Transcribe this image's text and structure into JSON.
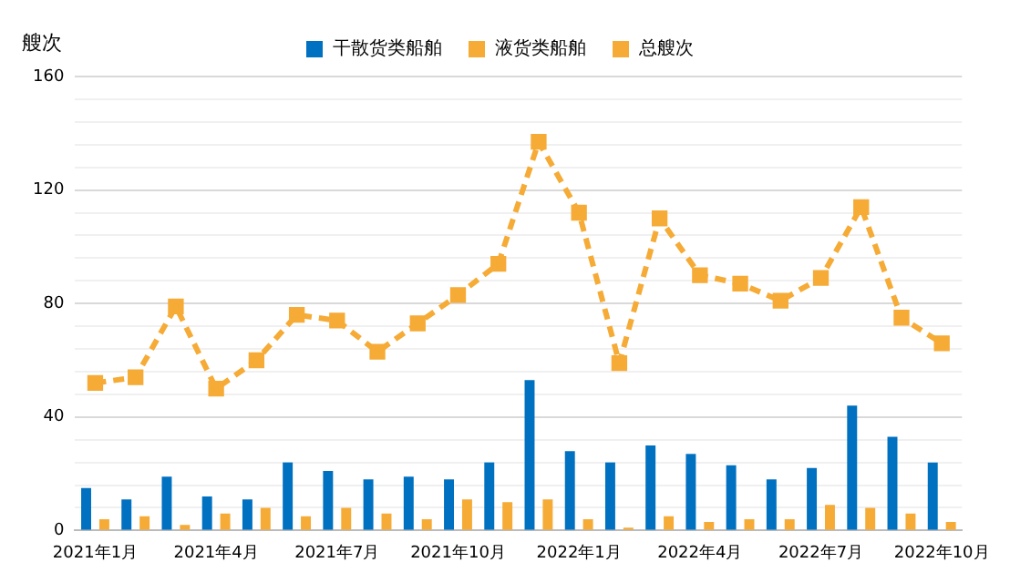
{
  "chart_data": {
    "type": "bar",
    "ylabel": "艘次",
    "categories": [
      "2021年1月",
      null,
      null,
      "2021年4月",
      null,
      null,
      "2021年7月",
      null,
      null,
      "2021年10月",
      null,
      null,
      "2022年1月",
      null,
      null,
      "2022年4月",
      null,
      null,
      "2022年7月",
      null,
      null,
      "2022年10月"
    ],
    "series": [
      {
        "name": "干散货类船舶",
        "color": "#0070c0",
        "values": [
          15,
          11,
          19,
          12,
          11,
          24,
          21,
          18,
          19,
          18,
          24,
          53,
          28,
          24,
          30,
          27,
          23,
          18,
          22,
          44,
          33,
          24
        ]
      },
      {
        "name": "液货类船舶",
        "color": "#f5ab35",
        "values": [
          4,
          5,
          2,
          6,
          8,
          5,
          8,
          6,
          4,
          11,
          10,
          11,
          4,
          1,
          5,
          3,
          4,
          4,
          9,
          8,
          6,
          3
        ]
      },
      {
        "name": "总艘次",
        "type": "line",
        "color": "#f5ab35",
        "marker": "square",
        "line_style": "dashed",
        "values": [
          52,
          54,
          79,
          50,
          60,
          76,
          74,
          63,
          73,
          83,
          94,
          137,
          112,
          59,
          110,
          90,
          87,
          81,
          89,
          114,
          75,
          66
        ]
      }
    ],
    "ylim": [
      0,
      160
    ],
    "yticks": [
      0,
      {
        "value": 8,
        "label": null
      },
      {
        "value": 16,
        "label": null
      },
      {
        "value": 24,
        "label": null
      },
      {
        "value": 32,
        "label": null
      },
      40,
      {
        "value": 48,
        "label": null
      },
      {
        "value": 56,
        "label": null
      },
      {
        "value": 64,
        "label": null
      },
      {
        "value": 72,
        "label": null
      },
      80,
      {
        "value": 88,
        "label": null
      },
      {
        "value": 96,
        "label": null
      },
      {
        "value": 104,
        "label": null
      },
      {
        "value": 112,
        "label": null
      },
      120,
      {
        "value": 128,
        "label": null
      },
      {
        "value": 136,
        "label": null
      },
      {
        "value": 144,
        "label": null
      },
      {
        "value": 152,
        "label": null
      },
      160
    ],
    "grid": "y",
    "legend": "top"
  }
}
